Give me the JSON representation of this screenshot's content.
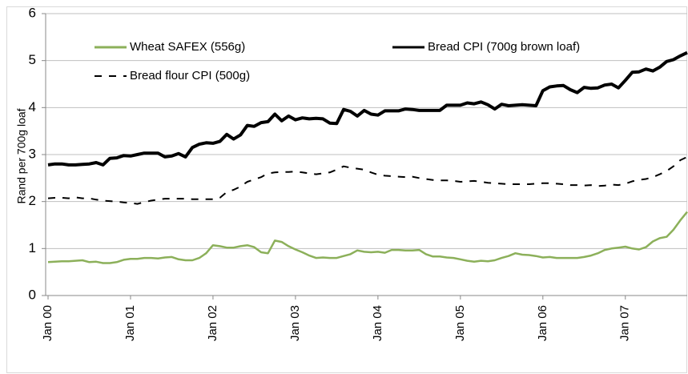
{
  "chart_data": {
    "type": "line",
    "y_label": "Rand per 700g loaf",
    "categories": [
      "Jan 00",
      null,
      null,
      null,
      null,
      null,
      null,
      null,
      null,
      null,
      null,
      null,
      "Jan 01",
      null,
      null,
      null,
      null,
      null,
      null,
      null,
      null,
      null,
      null,
      null,
      "Jan 02",
      null,
      null,
      null,
      null,
      null,
      null,
      null,
      null,
      null,
      null,
      null,
      "Jan 03",
      null,
      null,
      null,
      null,
      null,
      null,
      null,
      null,
      null,
      null,
      null,
      "Jan 04",
      null,
      null,
      null,
      null,
      null,
      null,
      null,
      null,
      null,
      null,
      null,
      "Jan 05",
      null,
      null,
      null,
      null,
      null,
      null,
      null,
      null,
      null,
      null,
      null,
      "Jan 06",
      null,
      null,
      null,
      null,
      null,
      null,
      null,
      null,
      null,
      null,
      null,
      "Jan 07",
      null,
      null,
      null,
      null,
      null,
      null,
      null,
      null,
      null
    ],
    "series": [
      {
        "name": "Wheat SAFEX (556g)",
        "color": "#8cb05a",
        "style": "solid",
        "values": [
          0.71,
          0.72,
          0.73,
          0.73,
          0.74,
          0.75,
          0.71,
          0.72,
          0.69,
          0.69,
          0.71,
          0.76,
          0.78,
          0.78,
          0.8,
          0.8,
          0.79,
          0.81,
          0.82,
          0.77,
          0.75,
          0.75,
          0.8,
          0.9,
          1.07,
          1.05,
          1.02,
          1.02,
          1.05,
          1.07,
          1.03,
          0.92,
          0.9,
          1.17,
          1.14,
          1.05,
          0.98,
          0.92,
          0.85,
          0.8,
          0.81,
          0.8,
          0.8,
          0.84,
          0.88,
          0.96,
          0.93,
          0.92,
          0.93,
          0.91,
          0.97,
          0.97,
          0.96,
          0.96,
          0.97,
          0.88,
          0.83,
          0.83,
          0.81,
          0.8,
          0.77,
          0.74,
          0.72,
          0.74,
          0.73,
          0.75,
          0.8,
          0.84,
          0.9,
          0.87,
          0.86,
          0.84,
          0.81,
          0.82,
          0.8,
          0.8,
          0.8,
          0.8,
          0.82,
          0.85,
          0.9,
          0.97,
          1.0,
          1.02,
          1.04,
          1.0,
          0.98,
          1.03,
          1.15,
          1.22,
          1.25,
          1.4,
          1.6,
          1.78
        ]
      },
      {
        "name": "Bread CPI (700g brown loaf)",
        "color": "#000000",
        "style": "solid",
        "values": [
          2.78,
          2.8,
          2.8,
          2.78,
          2.78,
          2.79,
          2.8,
          2.83,
          2.78,
          2.92,
          2.93,
          2.98,
          2.97,
          3.0,
          3.03,
          3.03,
          3.03,
          2.95,
          2.97,
          3.02,
          2.95,
          3.15,
          3.22,
          3.25,
          3.24,
          3.28,
          3.43,
          3.33,
          3.42,
          3.62,
          3.6,
          3.68,
          3.7,
          3.86,
          3.72,
          3.82,
          3.74,
          3.78,
          3.76,
          3.77,
          3.76,
          3.67,
          3.66,
          3.96,
          3.92,
          3.82,
          3.94,
          3.86,
          3.84,
          3.93,
          3.93,
          3.93,
          3.97,
          3.96,
          3.94,
          3.94,
          3.94,
          3.94,
          4.05,
          4.05,
          4.05,
          4.1,
          4.08,
          4.12,
          4.06,
          3.97,
          4.07,
          4.04,
          4.05,
          4.06,
          4.05,
          4.04,
          4.36,
          4.44,
          4.46,
          4.47,
          4.38,
          4.32,
          4.43,
          4.41,
          4.42,
          4.48,
          4.5,
          4.42,
          4.58,
          4.75,
          4.76,
          4.82,
          4.78,
          4.86,
          4.98,
          5.02,
          5.1,
          5.17
        ]
      },
      {
        "name": "Bread flour CPI (500g)",
        "color": "#000000",
        "style": "dashed",
        "values": [
          2.07,
          2.08,
          2.08,
          2.07,
          2.09,
          2.07,
          2.07,
          2.04,
          2.02,
          2.01,
          2.0,
          1.98,
          1.97,
          1.95,
          1.99,
          2.02,
          2.04,
          2.06,
          2.06,
          2.06,
          2.06,
          2.05,
          2.05,
          2.05,
          2.05,
          2.08,
          2.2,
          2.25,
          2.32,
          2.42,
          2.47,
          2.52,
          2.6,
          2.62,
          2.63,
          2.63,
          2.64,
          2.62,
          2.6,
          2.58,
          2.6,
          2.62,
          2.68,
          2.75,
          2.72,
          2.7,
          2.68,
          2.62,
          2.57,
          2.55,
          2.54,
          2.53,
          2.52,
          2.53,
          2.5,
          2.48,
          2.46,
          2.45,
          2.45,
          2.44,
          2.42,
          2.43,
          2.44,
          2.42,
          2.4,
          2.39,
          2.38,
          2.37,
          2.37,
          2.37,
          2.37,
          2.38,
          2.39,
          2.39,
          2.38,
          2.37,
          2.35,
          2.35,
          2.34,
          2.35,
          2.33,
          2.34,
          2.36,
          2.35,
          2.38,
          2.43,
          2.46,
          2.48,
          2.52,
          2.58,
          2.65,
          2.75,
          2.88,
          2.95
        ]
      }
    ],
    "ylim": [
      0,
      6
    ],
    "yticks": [
      0,
      1,
      2,
      3,
      4,
      5,
      6
    ],
    "grid": true,
    "legend": "top"
  }
}
